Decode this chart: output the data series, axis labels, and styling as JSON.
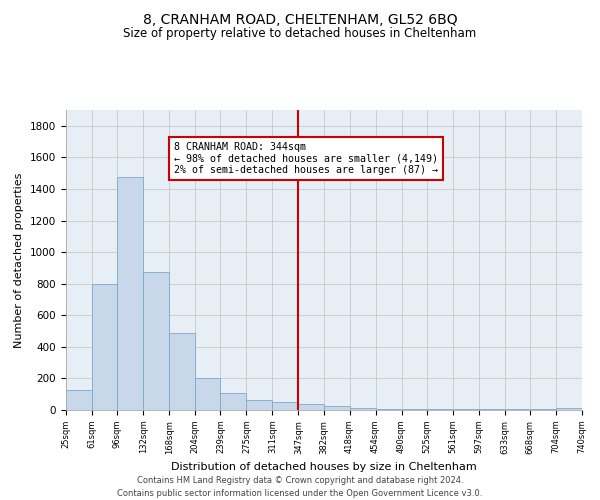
{
  "title": "8, CRANHAM ROAD, CHELTENHAM, GL52 6BQ",
  "subtitle": "Size of property relative to detached houses in Cheltenham",
  "xlabel": "Distribution of detached houses by size in Cheltenham",
  "ylabel": "Number of detached properties",
  "bar_color": "#c8d8ea",
  "bar_edge_color": "#7aaac8",
  "grid_color": "#c8c8c8",
  "bg_color": "#e8eef6",
  "annotation_box_color": "#cc0000",
  "vline_color": "#cc0000",
  "vline_x": 347,
  "annotation_text": "8 CRANHAM ROAD: 344sqm\n← 98% of detached houses are smaller (4,149)\n2% of semi-detached houses are larger (87) →",
  "footer_text": "Contains HM Land Registry data © Crown copyright and database right 2024.\nContains public sector information licensed under the Open Government Licence v3.0.",
  "bin_edges": [
    25,
    61,
    96,
    132,
    168,
    204,
    239,
    275,
    311,
    347,
    382,
    418,
    454,
    490,
    525,
    561,
    597,
    633,
    668,
    704,
    740
  ],
  "bar_heights": [
    125,
    800,
    1475,
    875,
    490,
    205,
    105,
    65,
    50,
    35,
    25,
    15,
    5,
    5,
    5,
    5,
    5,
    5,
    5,
    15
  ],
  "ylim": [
    0,
    1900
  ],
  "yticks": [
    0,
    200,
    400,
    600,
    800,
    1000,
    1200,
    1400,
    1600,
    1800
  ]
}
